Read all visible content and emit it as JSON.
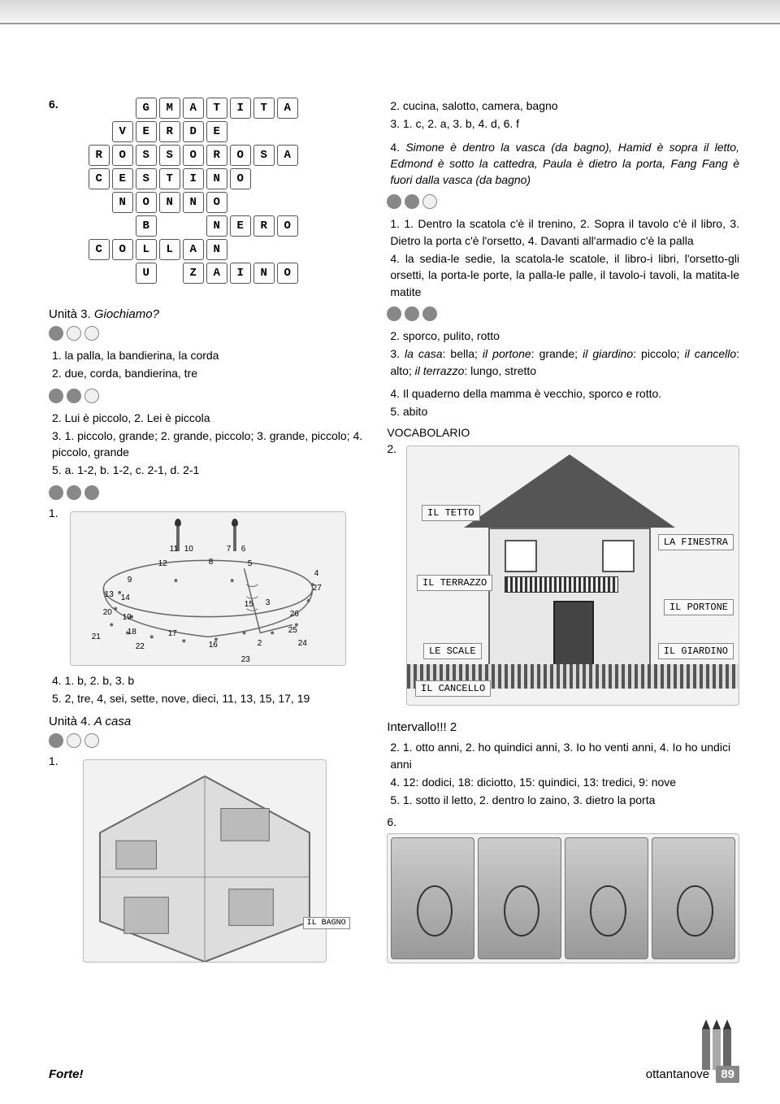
{
  "page": {
    "brand": "Forte!",
    "page_word": "ottantanove",
    "page_num": "89"
  },
  "crossword": {
    "num": "6.",
    "rows": [
      [
        null,
        null,
        null,
        "G",
        "M",
        "A",
        "T",
        "I",
        "T",
        "A"
      ],
      [
        null,
        null,
        "V",
        "E",
        "R",
        "D",
        "E",
        null,
        null,
        null
      ],
      [
        null,
        "R",
        "O",
        "S",
        "S",
        "O",
        "R",
        "O",
        "S",
        "A"
      ],
      [
        null,
        "C",
        "E",
        "S",
        "T",
        "I",
        "N",
        "O",
        null,
        null
      ],
      [
        null,
        null,
        "N",
        "O",
        "N",
        "N",
        "O",
        null,
        null,
        null
      ],
      [
        null,
        null,
        null,
        "B",
        null,
        null,
        "N",
        "E",
        "R",
        "O"
      ],
      [
        null,
        "C",
        "O",
        "L",
        "L",
        "A",
        "N",
        null,
        null,
        null
      ],
      [
        null,
        null,
        null,
        "U",
        null,
        "Z",
        "A",
        "I",
        "N",
        "O"
      ]
    ]
  },
  "u3": {
    "title_a": "Unità 3. ",
    "title_b": "Giochiamo?",
    "block1": [
      "1. la palla, la bandierina, la corda",
      "2. due, corda, bandierina, tre"
    ],
    "block2": [
      "2. Lui è piccolo, 2. Lei è piccola",
      "3. 1. piccolo, grande; 2. grande, piccolo; 3. grande, piccolo; 4. piccolo, grande",
      "5. a. 1-2, b. 1-2, c. 2-1, d. 2-1"
    ],
    "dots_num": "1.",
    "block3": [
      "4. 1. b, 2. b, 3. b",
      "5. 2, tre, 4, sei, sette, nove, dieci, 11, 13, 15, 17, 19"
    ]
  },
  "u4": {
    "title_a": "Unità 4. ",
    "title_b": "A casa",
    "num": "1.",
    "bagno_label": "IL BAGNO"
  },
  "cake_dots": [
    "11",
    "10",
    "7",
    "6",
    "12",
    "8",
    "5",
    "9",
    "4",
    "13",
    "14",
    "27",
    "20",
    "15",
    "3",
    "19",
    "26",
    "18",
    "17",
    "25",
    "21",
    "22",
    "16",
    "2",
    "24",
    "23"
  ],
  "right": {
    "blockA": [
      "2. cucina, salotto, camera, bagno",
      "3. 1. c, 2. a, 3. b, 4. d, 6. f"
    ],
    "blockA_p4_pre": "4. ",
    "blockA_p4": "Simone è dentro la vasca (da bagno), Hamid è sopra il letto, Edmond è sotto la cattedra, Paula è dietro la porta, Fang Fang è fuori dalla vasca (da bagno)",
    "blockB": [
      "1. 1. Dentro la scatola c'è il trenino, 2. Sopra il tavolo c'è il libro, 3. Dietro la porta c'è l'orsetto, 4. Davanti all'armadio c'è la palla",
      "4. la sedia-le sedie, la scatola-le scatole, il libro-i libri, l'orsetto-gli orsetti, la porta-le porte, la palla-le palle, il tavolo-i tavoli, la matita-le matite"
    ],
    "blockC_2": "2. sporco, pulito, rotto",
    "blockC_3_pre": "3. ",
    "blockC_3_parts": {
      "a": "la casa",
      "a2": ": bella; ",
      "b": "il portone",
      "b2": ": grande; ",
      "c": "il giardino",
      "c2": ": piccolo; ",
      "d": "il cancello",
      "d2": ": alto; ",
      "e": "il terrazzo",
      "e2": ": lungo, stretto"
    },
    "blockC_rest": [
      "4. Il quaderno della mamma è vecchio, sporco e rotto.",
      "5. abito"
    ],
    "vocab_title": "VOCABOLARIO",
    "vocab_num": "2."
  },
  "house_labels": {
    "tetto": "IL TETTO",
    "finestra": "LA FINESTRA",
    "terrazzo": "IL TERRAZZO",
    "portone": "IL PORTONE",
    "scale": "LE SCALE",
    "giardino": "IL GIARDINO",
    "cancello": "IL CANCELLO"
  },
  "intervallo": {
    "title": "Intervallo!!! 2",
    "items": [
      "2. 1. otto anni, 2. ho quindici anni, 3. Io ho venti anni, 4. Io ho undici anni",
      "4. 12: dodici, 18: diciotto, 15: quindici, 13: tredici, 9: nove",
      "5. 1. sotto il letto, 2. dentro lo zaino, 3. dietro la porta"
    ],
    "num6": "6."
  }
}
